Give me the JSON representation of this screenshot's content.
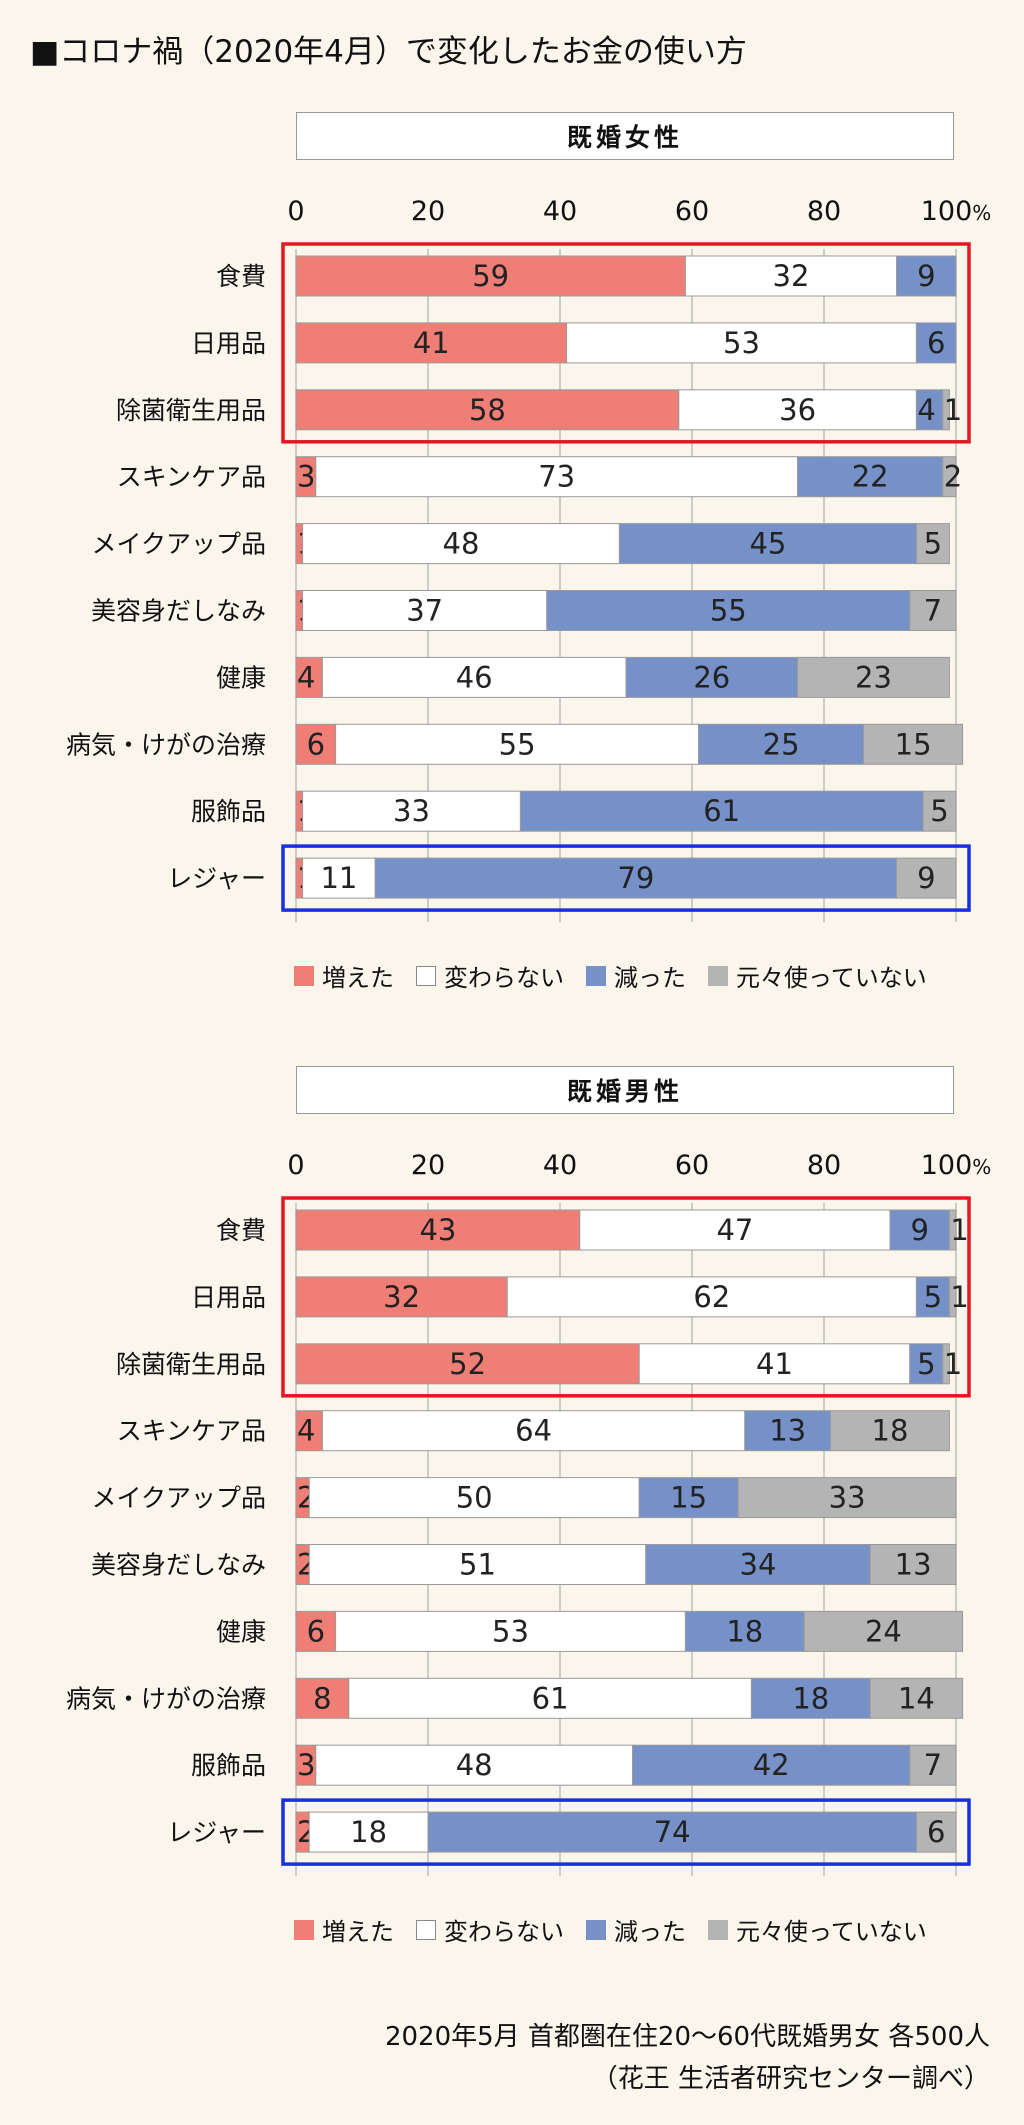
{
  "title": "■コロナ禍（2020年4月）で変化したお金の使い方",
  "colors": {
    "increased": "#ef7e76",
    "unchanged": "#ffffff",
    "decreased": "#7690c8",
    "not_used": "#b4b4b4",
    "highlight_red": "#e01824",
    "highlight_blue": "#1a2fe0"
  },
  "chart_data": [
    {
      "type": "bar",
      "orientation": "horizontal-stacked-percent",
      "title": "既婚女性",
      "xlim": [
        0,
        100
      ],
      "x_ticks": [
        "0",
        "20",
        "40",
        "60",
        "80",
        "100%"
      ],
      "categories": [
        "食費",
        "日用品",
        "除菌衛生用品",
        "スキンケア品",
        "メイクアップ品",
        "美容身だしなみ",
        "健康",
        "病気・けがの治療",
        "服飾品",
        "レジャー"
      ],
      "series": [
        {
          "name": "増えた",
          "values": [
            59,
            41,
            58,
            3,
            1,
            1,
            4,
            6,
            1,
            1
          ]
        },
        {
          "name": "変わらない",
          "values": [
            32,
            53,
            36,
            73,
            48,
            37,
            46,
            55,
            33,
            11
          ]
        },
        {
          "name": "減った",
          "values": [
            9,
            6,
            4,
            22,
            45,
            55,
            26,
            25,
            61,
            79
          ]
        },
        {
          "name": "元々使っていない",
          "values": [
            0,
            0,
            1,
            2,
            5,
            7,
            23,
            15,
            5,
            9
          ]
        }
      ],
      "legend": "bottom",
      "grid": true
    },
    {
      "type": "bar",
      "orientation": "horizontal-stacked-percent",
      "title": "既婚男性",
      "xlim": [
        0,
        100
      ],
      "x_ticks": [
        "0",
        "20",
        "40",
        "60",
        "80",
        "100%"
      ],
      "categories": [
        "食費",
        "日用品",
        "除菌衛生用品",
        "スキンケア品",
        "メイクアップ品",
        "美容身だしなみ",
        "健康",
        "病気・けがの治療",
        "服飾品",
        "レジャー"
      ],
      "series": [
        {
          "name": "増えた",
          "values": [
            43,
            32,
            52,
            4,
            2,
            2,
            6,
            8,
            3,
            2
          ]
        },
        {
          "name": "変わらない",
          "values": [
            47,
            62,
            41,
            64,
            50,
            51,
            53,
            61,
            48,
            18
          ]
        },
        {
          "name": "減った",
          "values": [
            9,
            5,
            5,
            13,
            15,
            34,
            18,
            18,
            42,
            74
          ]
        },
        {
          "name": "元々使っていない",
          "values": [
            1,
            1,
            1,
            18,
            33,
            13,
            24,
            14,
            7,
            6
          ]
        }
      ],
      "legend": "bottom",
      "grid": true
    }
  ],
  "source": {
    "line1": "2020年5月 首都圏在住20〜60代既婚男女 各500人",
    "line2": "（花王 生活者研究センター調べ）"
  }
}
